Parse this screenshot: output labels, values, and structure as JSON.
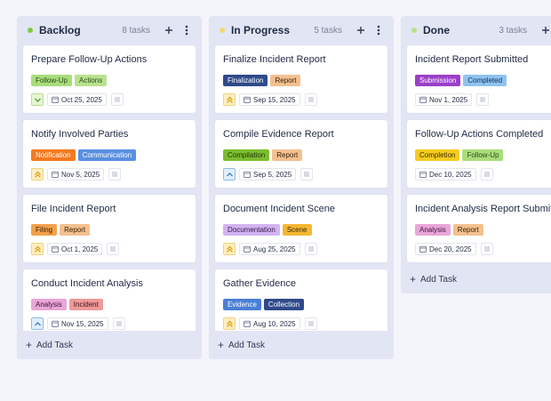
{
  "columns": [
    {
      "title": "Backlog",
      "count": "8 tasks",
      "dot_color": "#7ecb3f",
      "add_label": "Add Task",
      "cards": [
        {
          "title": "Prepare Follow-Up Actions",
          "tags": [
            {
              "label": "Follow-Up",
              "bg": "#a9dd7c",
              "fg": "#2b4a17"
            },
            {
              "label": "Actions",
              "bg": "#b8e28f",
              "fg": "#2b4a17"
            }
          ],
          "priority": "low",
          "date": "Oct 25, 2025"
        },
        {
          "title": "Notify Involved Parties",
          "tags": [
            {
              "label": "Notification",
              "bg": "#f47a20",
              "fg": "#ffffff"
            },
            {
              "label": "Communication",
              "bg": "#5a8fe0",
              "fg": "#ffffff"
            }
          ],
          "priority": "high",
          "date": "Nov 5, 2025"
        },
        {
          "title": "File Incident Report",
          "tags": [
            {
              "label": "Filing",
              "bg": "#f2a14a",
              "fg": "#3a2208"
            },
            {
              "label": "Report",
              "bg": "#f4c08f",
              "fg": "#3a2208"
            }
          ],
          "priority": "high",
          "date": "Oct 1, 2025"
        },
        {
          "title": "Conduct Incident Analysis",
          "tags": [
            {
              "label": "Analysis",
              "bg": "#e9a6d8",
              "fg": "#3e1433"
            },
            {
              "label": "Incident",
              "bg": "#ef9a9a",
              "fg": "#3e1414"
            }
          ],
          "priority": "medium",
          "date": "Nov 15, 2025"
        }
      ]
    },
    {
      "title": "In Progress",
      "count": "5 tasks",
      "dot_color": "#f5d76e",
      "add_label": "Add Task",
      "cards": [
        {
          "title": "Finalize Incident Report",
          "tags": [
            {
              "label": "Finalization",
              "bg": "#2f4a8a",
              "fg": "#ffffff"
            },
            {
              "label": "Report",
              "bg": "#f4c08f",
              "fg": "#3a2208"
            }
          ],
          "priority": "high",
          "date": "Sep 15, 2025"
        },
        {
          "title": "Compile Evidence Report",
          "tags": [
            {
              "label": "Compilation",
              "bg": "#7cbd2f",
              "fg": "#1f3308"
            },
            {
              "label": "Report",
              "bg": "#f4c08f",
              "fg": "#3a2208"
            }
          ],
          "priority": "medium",
          "date": "Sep 5, 2025"
        },
        {
          "title": "Document Incident Scene",
          "tags": [
            {
              "label": "Documentation",
              "bg": "#d3b3f0",
              "fg": "#331748"
            },
            {
              "label": "Scene",
              "bg": "#f5b731",
              "fg": "#3a2a08"
            }
          ],
          "priority": "high",
          "date": "Aug 25, 2025"
        },
        {
          "title": "Gather Evidence",
          "tags": [
            {
              "label": "Evidence",
              "bg": "#4a7fd6",
              "fg": "#ffffff"
            },
            {
              "label": "Collection",
              "bg": "#2f4a8a",
              "fg": "#ffffff"
            }
          ],
          "priority": "high",
          "date": "Aug 10, 2025"
        }
      ]
    },
    {
      "title": "Done",
      "count": "3 tasks",
      "dot_color": "#b9e08a",
      "add_label": "Add Task",
      "cards": [
        {
          "title": "Incident Report Submitted",
          "tags": [
            {
              "label": "Submission",
              "bg": "#9b3fc9",
              "fg": "#ffffff"
            },
            {
              "label": "Completed",
              "bg": "#8fc3f0",
              "fg": "#10304f"
            }
          ],
          "priority": "none",
          "date": "Nov 1, 2025"
        },
        {
          "title": "Follow-Up Actions Completed",
          "tags": [
            {
              "label": "Completion",
              "bg": "#f5cc1f",
              "fg": "#3a2f05"
            },
            {
              "label": "Follow-Up",
              "bg": "#a9dd7c",
              "fg": "#2b4a17"
            }
          ],
          "priority": "none",
          "date": "Dec 10, 2025"
        },
        {
          "title": "Incident Analysis Report Submitted",
          "tags": [
            {
              "label": "Analysis",
              "bg": "#e9a6d8",
              "fg": "#3e1433"
            },
            {
              "label": "Report",
              "bg": "#f4c08f",
              "fg": "#3a2208"
            }
          ],
          "priority": "none",
          "date": "Dec 20, 2025"
        }
      ]
    }
  ]
}
